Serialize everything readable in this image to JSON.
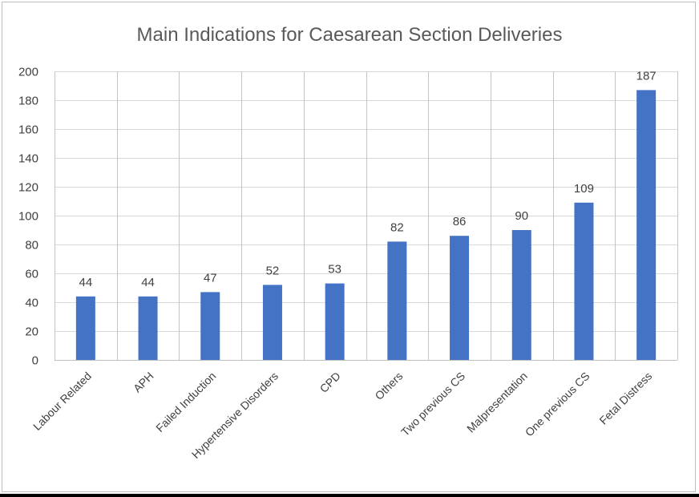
{
  "chart_data": {
    "type": "bar",
    "title": "Main Indications for Caesarean Section Deliveries",
    "xlabel": "",
    "ylabel": "",
    "categories": [
      "Labour Related",
      "APH",
      "Failed Induction",
      "Hypertensive Disorders",
      "CPD",
      "Others",
      "Two previous CS",
      "Malpresentation",
      "One previous CS",
      "Fetal Distress"
    ],
    "values": [
      44,
      44,
      47,
      52,
      53,
      82,
      86,
      90,
      109,
      187
    ],
    "ylim": [
      0,
      200
    ],
    "yticks": [
      0,
      20,
      40,
      60,
      80,
      100,
      120,
      140,
      160,
      180,
      200
    ],
    "grid": "vertical and horizontal",
    "data_labels": true,
    "bar_color": "#4472c4",
    "grid_color": "#d9d9d9"
  }
}
